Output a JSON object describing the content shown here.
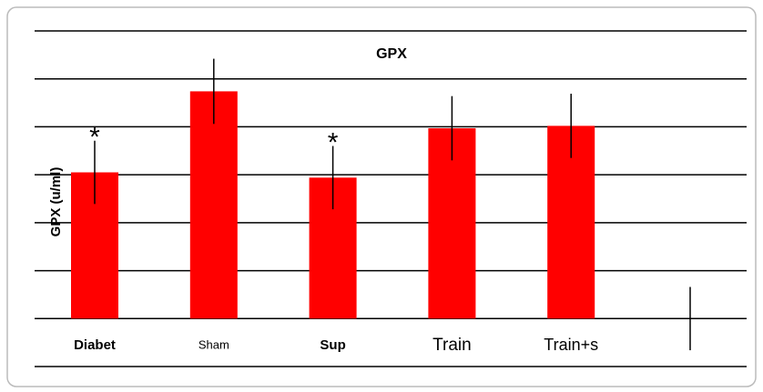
{
  "chart_data": {
    "type": "bar",
    "title": "GPX",
    "y_label": "GPX (u/ml)",
    "categories": [
      "Diabet",
      "Sham",
      "Sup",
      "Train",
      "Train+s",
      null
    ],
    "values": [
      3.05,
      4.74,
      2.94,
      3.97,
      4.02,
      0
    ],
    "errors": [
      0.66,
      0.68,
      0.66,
      0.67,
      0.67,
      0.66
    ],
    "annotations": [
      "*",
      null,
      "*",
      null,
      null,
      null
    ],
    "color": "#ff0000",
    "ylim": [
      -1,
      6
    ],
    "yticks": [
      -1,
      0,
      1,
      2,
      3,
      4,
      5,
      6
    ],
    "grid": true
  }
}
